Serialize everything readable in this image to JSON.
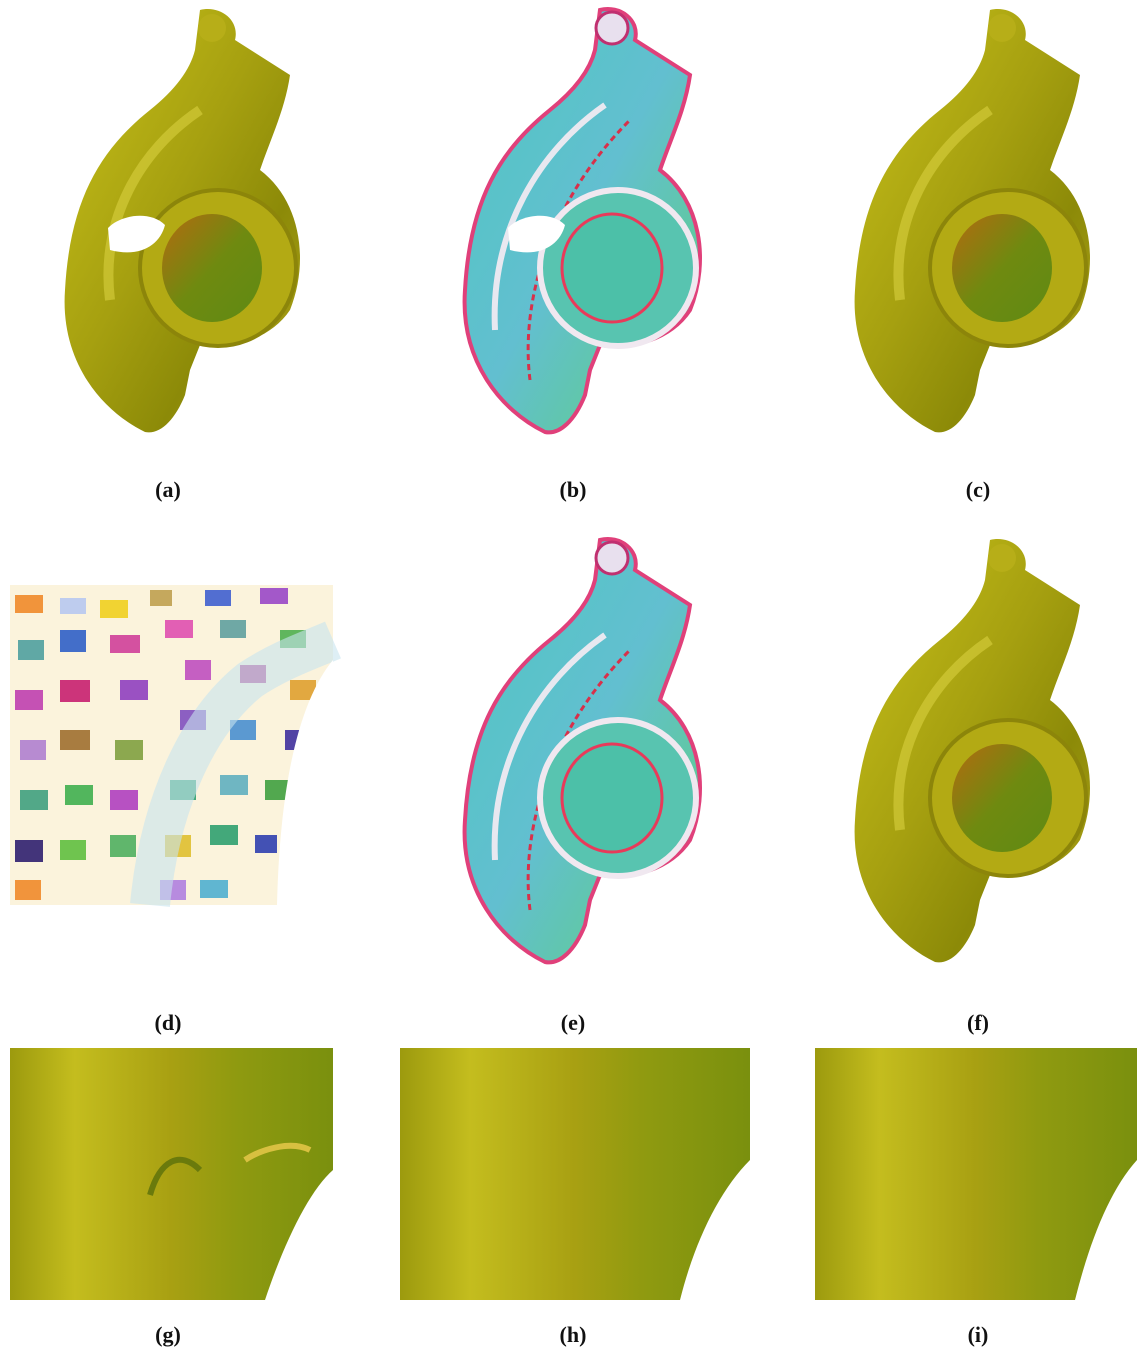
{
  "labels": [
    "(a)",
    "(b)",
    "(c)",
    "(d)",
    "(e)",
    "(f)",
    "(g)",
    "(h)",
    "(i)"
  ]
}
